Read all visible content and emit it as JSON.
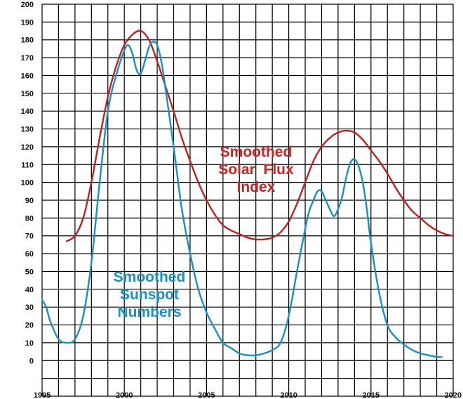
{
  "chart_data": {
    "type": "line",
    "title": "",
    "xlabel": "",
    "ylabel": "",
    "xlim": [
      1995,
      2020
    ],
    "ylim": [
      -20,
      200
    ],
    "x_ticks": [
      1995,
      2000,
      2005,
      2010,
      2015,
      2020
    ],
    "y_ticks": [
      0,
      10,
      20,
      30,
      40,
      50,
      60,
      70,
      80,
      90,
      100,
      110,
      120,
      130,
      140,
      150,
      160,
      170,
      180,
      190,
      200
    ],
    "grid": true,
    "legend": "none",
    "annotations": [
      {
        "series": "flux",
        "lines": [
          "Smoothed",
          "Solar  Flux",
          "Index"
        ],
        "color": "#cc2222"
      },
      {
        "series": "sunspot",
        "lines": [
          "Smoothed",
          "Sunspot",
          "Numbers"
        ],
        "color": "#1a8fc4"
      }
    ],
    "series": [
      {
        "id": "flux",
        "color": "#bb2222",
        "x": [
          1996.5,
          1997,
          1997.5,
          1998,
          1998.5,
          1999,
          1999.5,
          2000,
          2000.5,
          2001,
          2001.5,
          2002,
          2002.5,
          2003,
          2003.5,
          2004,
          2004.5,
          2005,
          2005.5,
          2006,
          2006.5,
          2007,
          2007.5,
          2008,
          2008.5,
          2009,
          2009.5,
          2010,
          2010.5,
          2011,
          2011.5,
          2012,
          2012.5,
          2013,
          2013.5,
          2014,
          2014.5,
          2015,
          2015.5,
          2016,
          2016.5,
          2017,
          2017.5,
          2018,
          2018.5,
          2019,
          2019.5,
          2020
        ],
        "y": [
          67,
          70,
          80,
          100,
          125,
          148,
          165,
          177,
          183,
          185,
          180,
          168,
          154,
          140,
          125,
          112,
          100,
          90,
          82,
          76,
          73,
          71,
          69,
          68,
          68,
          69,
          72,
          78,
          88,
          100,
          112,
          120,
          125,
          128,
          129,
          128,
          124,
          118,
          112,
          105,
          97,
          90,
          84,
          80,
          76,
          73,
          71,
          70
        ]
      },
      {
        "id": "sunspot",
        "color": "#1a8fc4",
        "x": [
          1995,
          1995.25,
          1995.5,
          1996,
          1996.5,
          1997,
          1997.5,
          1998,
          1998.5,
          1999,
          1999.5,
          2000,
          2000.25,
          2000.5,
          2000.75,
          2001,
          2001.25,
          2001.5,
          2001.75,
          2002,
          2002.25,
          2002.5,
          2003,
          2003.5,
          2004,
          2004.5,
          2005,
          2005.5,
          2006,
          2006.5,
          2007,
          2007.5,
          2008,
          2008.5,
          2009,
          2009.5,
          2010,
          2010.5,
          2011,
          2011.25,
          2011.5,
          2011.75,
          2012,
          2012.25,
          2012.5,
          2012.75,
          2013,
          2013.25,
          2013.5,
          2013.75,
          2014,
          2014.25,
          2014.5,
          2014.75,
          2015,
          2015.5,
          2016,
          2016.5,
          2017,
          2017.5,
          2018,
          2018.5,
          2019,
          2019.3
        ],
        "y": [
          34,
          30,
          22,
          12,
          10,
          12,
          25,
          55,
          100,
          140,
          160,
          174,
          177,
          172,
          163,
          161,
          168,
          176,
          179,
          177,
          168,
          153,
          120,
          85,
          60,
          40,
          27,
          18,
          10,
          7,
          4,
          3,
          3,
          4,
          6,
          10,
          25,
          50,
          74,
          84,
          90,
          95,
          95,
          90,
          85,
          81,
          85,
          92,
          103,
          111,
          113,
          109,
          100,
          85,
          66,
          38,
          20,
          13,
          9,
          6,
          4,
          3,
          2,
          2
        ]
      }
    ]
  }
}
